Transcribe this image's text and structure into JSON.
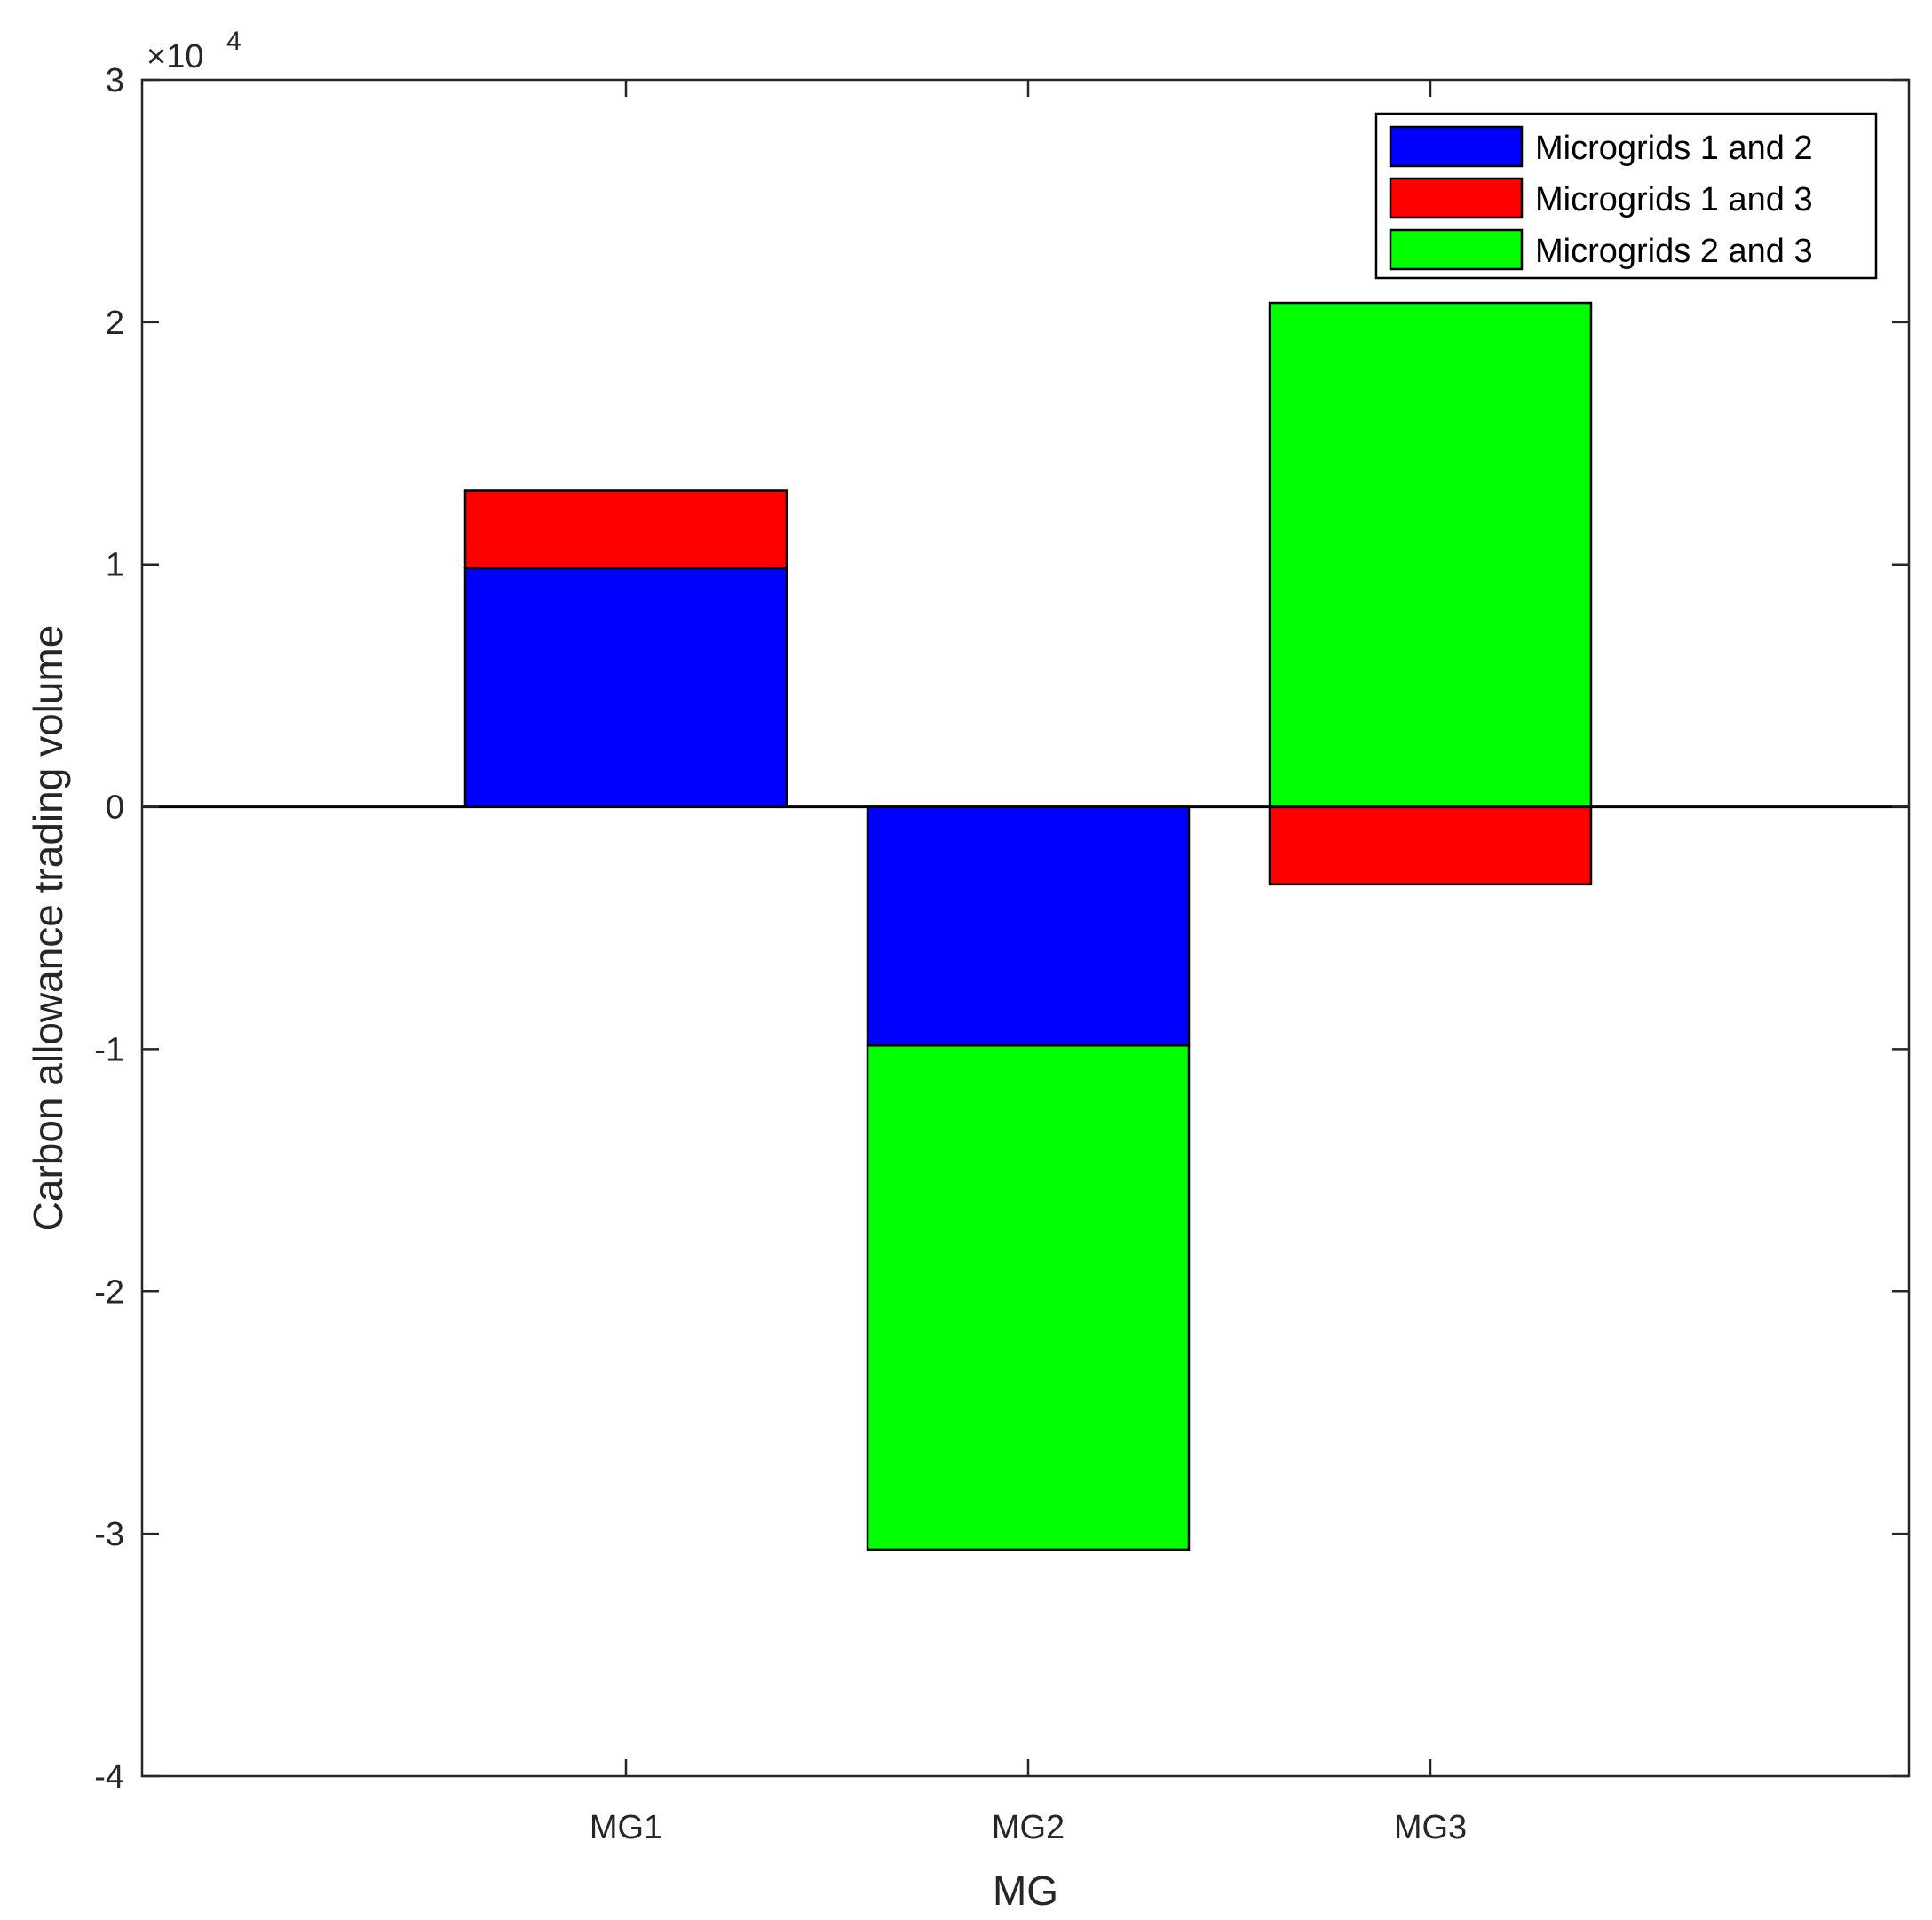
{
  "chart_data": {
    "type": "bar",
    "stacked": true,
    "categories": [
      "MG1",
      "MG2",
      "MG3"
    ],
    "series": [
      {
        "name": "Microgrids 1 and 2",
        "color": "#0000ff",
        "values": [
          9850,
          -9850,
          0
        ]
      },
      {
        "name": "Microgrids 1 and 3",
        "color": "#ff0000",
        "values": [
          3200,
          0,
          -3200
        ]
      },
      {
        "name": "Microgrids 2 and 3",
        "color": "#00ff00",
        "values": [
          0,
          -20800,
          20800
        ]
      }
    ],
    "xlabel": "MG",
    "ylabel": "Carbon allowance trading volume",
    "ylim": [
      -40000,
      30000
    ],
    "yticks": [
      -40000,
      -30000,
      -20000,
      -10000,
      0,
      10000,
      20000,
      30000
    ],
    "ytick_labels": [
      "-4",
      "-3",
      "-2",
      "-1",
      "0",
      "1",
      "2",
      "3"
    ],
    "y_exponent_base": "×10",
    "y_exponent_power": "4",
    "legend_position": "top-right",
    "grid": false,
    "zero_line": true
  }
}
